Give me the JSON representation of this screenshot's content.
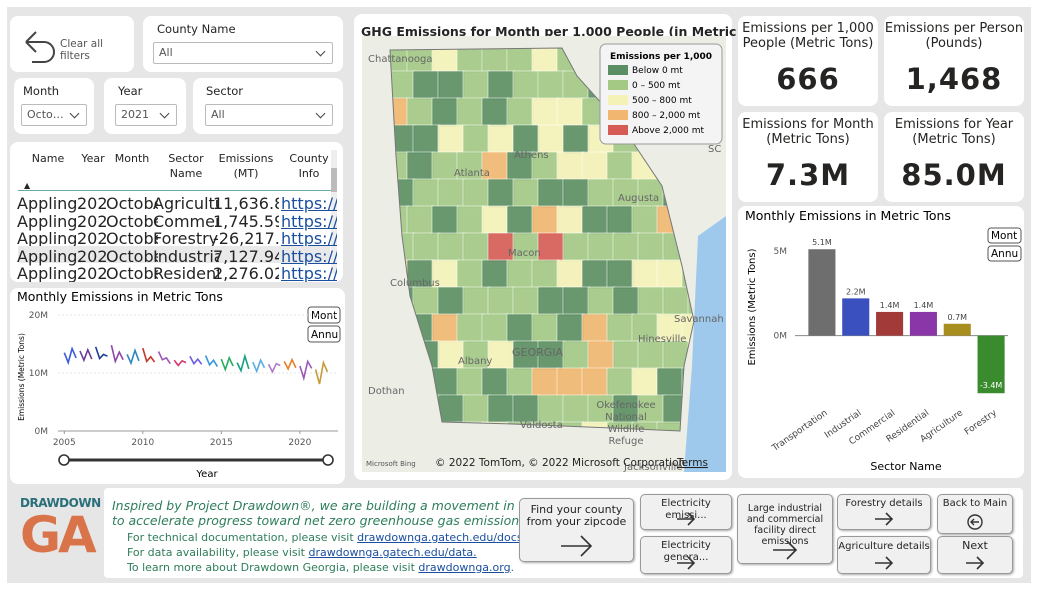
{
  "filters": {
    "clear": "Clear all filters",
    "county": {
      "label": "County Name",
      "value": "All"
    },
    "month": {
      "label": "Month",
      "value": "Octo…"
    },
    "year": {
      "label": "Year",
      "value": "2021"
    },
    "sector": {
      "label": "Sector",
      "value": "All"
    }
  },
  "table": {
    "columns": [
      "Name",
      "Year",
      "Month",
      "Sector Name",
      "Emissions (MT)",
      "County Info"
    ],
    "rows": [
      [
        "Appling",
        "2021",
        "October",
        "Agriculture",
        "11,636.80",
        "https://..."
      ],
      [
        "Appling",
        "2021",
        "October",
        "Commerc...",
        "1,745.59",
        "https://..."
      ],
      [
        "Appling",
        "2021",
        "October",
        "Forestry",
        "-26,217.20",
        "https://..."
      ],
      [
        "Appling",
        "2021",
        "October",
        "Industrial",
        "7,127.94",
        "https://..."
      ],
      [
        "Appling",
        "2021",
        "October",
        "Residential",
        "2,276.02",
        "https://..."
      ]
    ]
  },
  "map": {
    "title": "GHG Emissions for Month per 1,000 People (in Metric Tons)",
    "legend_title": "Emissions per 1,000",
    "legend": [
      {
        "label": "Below 0 mt",
        "color": "#5b8e62"
      },
      {
        "label": "0 – 500 mt",
        "color": "#a3c985"
      },
      {
        "label": "500 – 800 mt",
        "color": "#f5f2b8"
      },
      {
        "label": "800 – 2,000 mt",
        "color": "#f1b770"
      },
      {
        "label": "Above 2,000 mt",
        "color": "#d65b55"
      }
    ],
    "places": [
      "Chattanooga",
      "Athens",
      "Atlanta",
      "Augusta",
      "Columbus",
      "Macon",
      "Savannah",
      "Hinesville",
      "Albany",
      "GEORGIA",
      "Dothan",
      "Valdosta",
      "Okefenokee",
      "National",
      "Wildlife",
      "Refuge",
      "Jacksonville",
      "Columbia",
      "SC"
    ],
    "attribution": "© 2022 TomTom, © 2022 Microsoft Corporation",
    "terms": "Terms",
    "bing": "Microsoft Bing"
  },
  "kpis": [
    {
      "label": "Emissions per 1,000 People (Metric Tons)",
      "value": "666"
    },
    {
      "label": "Emissions per Person (Pounds)",
      "value": "1,468"
    },
    {
      "label": "Emissions for Month (Metric Tons)",
      "value": "7.3M"
    },
    {
      "label": "Emissions for Year (Metric Tons)",
      "value": "85.0M"
    }
  ],
  "chart_data": [
    {
      "type": "line",
      "title": "Monthly Emissions in Metric Tons",
      "y_label": "Emissions (Metric Tons)",
      "x_label": "Year",
      "buttons": [
        "Mont",
        "Annu"
      ],
      "xlim": [
        2004.6,
        2022.3
      ],
      "xticks": [
        2005,
        2010,
        2015,
        2020
      ],
      "ylim": [
        0,
        20000000
      ],
      "yticks": [
        {
          "value": 0,
          "label": "0M"
        },
        {
          "value": 10000000,
          "label": "10M"
        },
        {
          "value": 20000000,
          "label": "20M"
        }
      ],
      "grid": true,
      "series": [
        {
          "color": "#3b5bdb",
          "x": [
            2005,
            2005.25,
            2005.5,
            2005.75
          ],
          "values": [
            13500000,
            11800000,
            14200000,
            12600000
          ]
        },
        {
          "color": "#6a3d9a",
          "x": [
            2006,
            2006.25,
            2006.5,
            2006.75
          ],
          "values": [
            13800000,
            12200000,
            14000000,
            12400000
          ]
        },
        {
          "color": "#1f3a93",
          "x": [
            2007,
            2007.25,
            2007.5,
            2007.75
          ],
          "values": [
            14500000,
            12500000,
            13200000,
            12900000
          ]
        },
        {
          "color": "#8e44ad",
          "x": [
            2008,
            2008.25,
            2008.5,
            2008.75
          ],
          "values": [
            14800000,
            12000000,
            13600000,
            12300000
          ]
        },
        {
          "color": "#2e86c1",
          "x": [
            2009,
            2009.25,
            2009.5,
            2009.75
          ],
          "values": [
            13200000,
            11700000,
            13900000,
            12100000
          ]
        },
        {
          "color": "#c0392b",
          "x": [
            2010,
            2010.25,
            2010.5,
            2010.75
          ],
          "values": [
            14300000,
            12000000,
            12800000,
            11900000
          ]
        },
        {
          "color": "#9b59b6",
          "x": [
            2011,
            2011.25,
            2011.5,
            2011.75
          ],
          "values": [
            13700000,
            12300000,
            12600000,
            11600000
          ]
        },
        {
          "color": "#d6336c",
          "x": [
            2012,
            2012.25,
            2012.5,
            2012.75
          ],
          "values": [
            12200000,
            11300000,
            12100000,
            11800000
          ]
        },
        {
          "color": "#6c5ce7",
          "x": [
            2013,
            2013.25,
            2013.5,
            2013.75
          ],
          "values": [
            12900000,
            11600000,
            12400000,
            11500000
          ]
        },
        {
          "color": "#3498db",
          "x": [
            2014,
            2014.25,
            2014.5,
            2014.75
          ],
          "values": [
            13000000,
            11400000,
            12200000,
            11100000
          ]
        },
        {
          "color": "#27ae60",
          "x": [
            2015,
            2015.25,
            2015.5,
            2015.75
          ],
          "values": [
            12400000,
            10600000,
            12600000,
            11200000
          ]
        },
        {
          "color": "#16a085",
          "x": [
            2016,
            2016.25,
            2016.5,
            2016.75
          ],
          "values": [
            11800000,
            10400000,
            12900000,
            10700000
          ]
        },
        {
          "color": "#5dade2",
          "x": [
            2017,
            2017.25,
            2017.5,
            2017.75
          ],
          "values": [
            11900000,
            10300000,
            12200000,
            10900000
          ]
        },
        {
          "color": "#af7ac5",
          "x": [
            2018,
            2018.25,
            2018.5,
            2018.75
          ],
          "values": [
            11500000,
            10200000,
            11600000,
            11300000
          ]
        },
        {
          "color": "#e67e22",
          "x": [
            2019,
            2019.25,
            2019.5,
            2019.75
          ],
          "values": [
            12000000,
            10700000,
            12300000,
            10900000
          ]
        },
        {
          "color": "#9b59b6",
          "x": [
            2020,
            2020.25,
            2020.5,
            2020.75
          ],
          "values": [
            11200000,
            9100000,
            12000000,
            10800000
          ]
        },
        {
          "color": "#c79b3a",
          "x": [
            2021,
            2021.25,
            2021.5,
            2021.75
          ],
          "values": [
            10600000,
            8100000,
            11800000,
            10200000
          ]
        }
      ]
    },
    {
      "type": "bar",
      "title": "Monthly Emissions in Metric Tons",
      "y_label": "Emissions (Metric Tons)",
      "x_label": "Sector Name",
      "buttons": [
        "Mont",
        "Annu"
      ],
      "categories": [
        "Transportation",
        "Industrial",
        "Commercial",
        "Residential",
        "Agriculture",
        "Forestry"
      ],
      "values": [
        5100000,
        2200000,
        1400000,
        1400000,
        700000,
        -3400000
      ],
      "value_labels": [
        "5.1M",
        "2.2M",
        "1.4M",
        "1.4M",
        "0.7M",
        "-3.4M"
      ],
      "colors": [
        "#6e6e6e",
        "#3a50bf",
        "#a33a3a",
        "#8a35a8",
        "#a88d1f",
        "#3a8a2e"
      ],
      "ylim": [
        -3800000,
        6000000
      ],
      "yticks": [
        {
          "value": 0,
          "label": "0M"
        },
        {
          "value": 5000000,
          "label": "5M"
        }
      ],
      "grid": false
    }
  ],
  "footer": {
    "logo_top": "DRAWDOWN",
    "logo_bottom": "GA",
    "intro_1": "Inspired by Project Drawdown®, we are building a movement in Georgia",
    "intro_2": "to accelerate progress toward net zero greenhouse gas emissions.",
    "docs_text": "For technical documentation, please visit ",
    "docs_link": "drawdownga.gatech.edu/docs.",
    "data_text": "For data availability, please visit ",
    "data_link": "drawdownga.gatech.edu/data.",
    "more_text": "To learn more about Drawdown Georgia, please visit ",
    "more_link": "drawdownga.org",
    "more_end": ".",
    "buttons": [
      "Find your county from your zipcode",
      "Electricity emissi...",
      "Electricity genera...",
      "Large industrial and commercial facility direct emissions",
      "Forestry details",
      "Agriculture details",
      "Back to Main",
      "Next"
    ]
  }
}
